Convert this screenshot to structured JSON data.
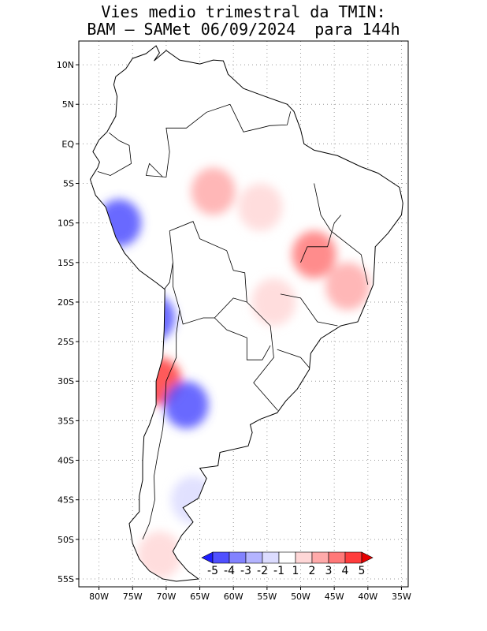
{
  "title_line1": "Vies medio trimestral da TMIN:",
  "title_line2": "BAM – SAMet 06/09/2024  para 144h",
  "lat_ticks": [
    {
      "label": "10N",
      "lat": 10
    },
    {
      "label": "5N",
      "lat": 5
    },
    {
      "label": "EQ",
      "lat": 0
    },
    {
      "label": "5S",
      "lat": -5
    },
    {
      "label": "10S",
      "lat": -10
    },
    {
      "label": "15S",
      "lat": -15
    },
    {
      "label": "20S",
      "lat": -20
    },
    {
      "label": "25S",
      "lat": -25
    },
    {
      "label": "30S",
      "lat": -30
    },
    {
      "label": "35S",
      "lat": -35
    },
    {
      "label": "40S",
      "lat": -40
    },
    {
      "label": "45S",
      "lat": -45
    },
    {
      "label": "50S",
      "lat": -50
    },
    {
      "label": "55S",
      "lat": -55
    }
  ],
  "lon_ticks": [
    {
      "label": "80W",
      "lon": -80
    },
    {
      "label": "75W",
      "lon": -75
    },
    {
      "label": "70W",
      "lon": -70
    },
    {
      "label": "65W",
      "lon": -65
    },
    {
      "label": "60W",
      "lon": -60
    },
    {
      "label": "55W",
      "lon": -55
    },
    {
      "label": "50W",
      "lon": -50
    },
    {
      "label": "45W",
      "lon": -45
    },
    {
      "label": "40W",
      "lon": -40
    },
    {
      "label": "35W",
      "lon": -35
    }
  ],
  "colorbar": {
    "labels": [
      "-5",
      "-4",
      "-3",
      "-2",
      "-1",
      "1",
      "2",
      "3",
      "4",
      "5"
    ],
    "colors": [
      "#1e1eff",
      "#5050ff",
      "#8282ff",
      "#b4b4ff",
      "#dcdcff",
      "#ffffff",
      "#ffd7d7",
      "#ffaaaa",
      "#ff7878",
      "#ff3c3c",
      "#e60000"
    ]
  },
  "bias_regions": [
    {
      "lon": -63,
      "lat": -6,
      "bias": 2.5
    },
    {
      "lon": -56,
      "lat": -8,
      "bias": 1.5
    },
    {
      "lon": -48,
      "lat": -14,
      "bias": 3.5
    },
    {
      "lon": -43,
      "lat": -18,
      "bias": 3.0
    },
    {
      "lon": -54,
      "lat": -20,
      "bias": 2.0
    },
    {
      "lon": -77,
      "lat": -10,
      "bias": -4.5
    },
    {
      "lon": -72,
      "lat": -22,
      "bias": -4.0
    },
    {
      "lon": -71,
      "lat": -30,
      "bias": 4.5
    },
    {
      "lon": -67,
      "lat": -33,
      "bias": -4.5
    },
    {
      "lon": -66,
      "lat": -45,
      "bias": -1.5
    },
    {
      "lon": -71,
      "lat": -52,
      "bias": 1.5
    }
  ]
}
